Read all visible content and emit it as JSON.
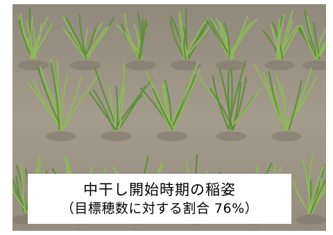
{
  "caption": {
    "title": "中干し開始時期の稲姿",
    "subtitle": "（目標穂数に対する割合 76%）"
  },
  "photo": {
    "subject": "rice-seedlings-in-drained-paddy",
    "colors": {
      "soil": "#9c9485",
      "leaf": "#5f8f3a",
      "leaf_light": "#8fb85a"
    }
  }
}
